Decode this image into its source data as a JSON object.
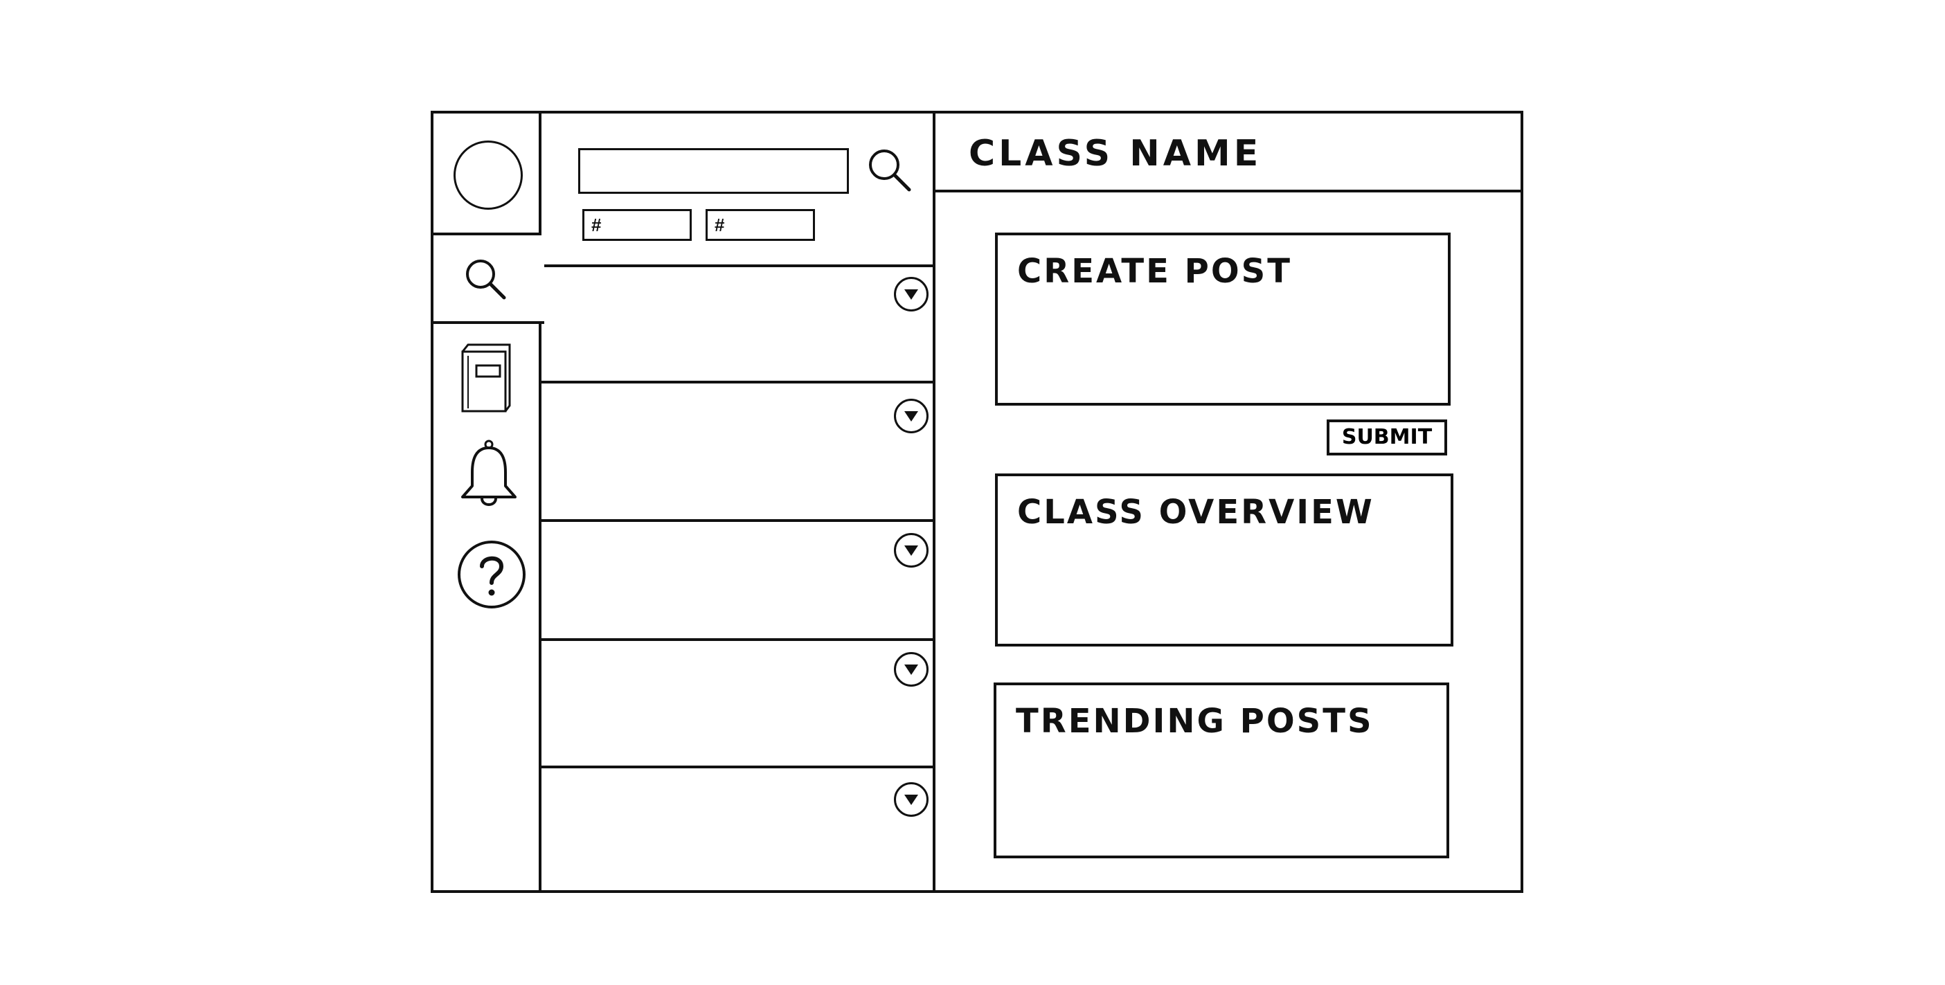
{
  "search": {
    "placeholder": "",
    "tags": [
      "#",
      "#"
    ]
  },
  "rail": {
    "icons": [
      "avatar",
      "search-icon",
      "book-icon",
      "bell-icon",
      "help-icon"
    ]
  },
  "list": {
    "item_count": 5
  },
  "header": {
    "class_name": "CLASS NAME"
  },
  "cards": {
    "create_post": "CREATE POST",
    "class_overview": "CLASS OVERVIEW",
    "trending_posts": "TRENDING POSTS"
  },
  "actions": {
    "submit_label": "SUBMIT"
  }
}
